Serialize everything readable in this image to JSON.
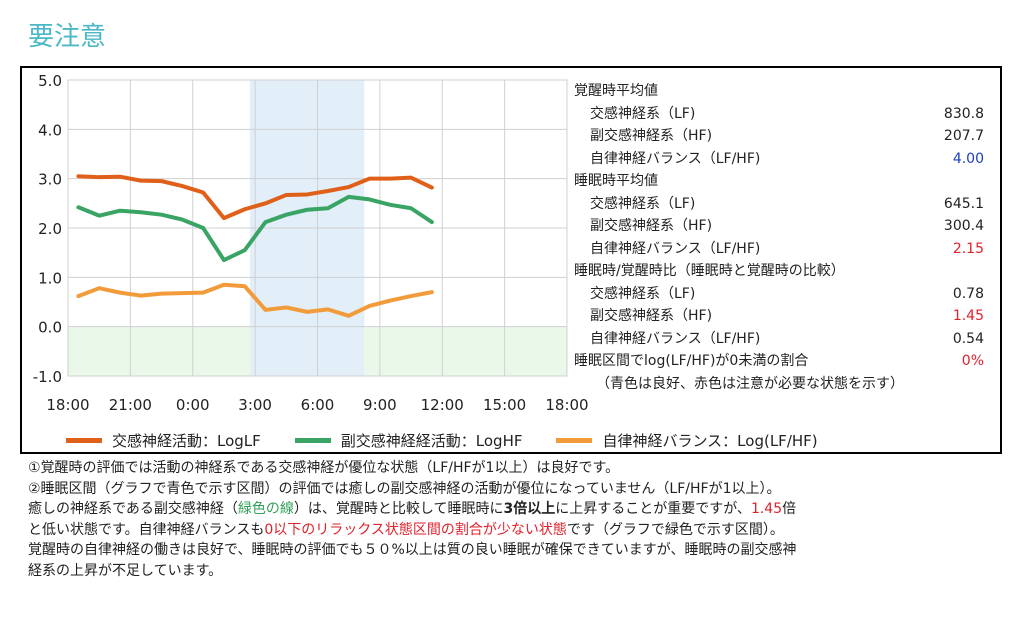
{
  "heading": "要注意",
  "colors": {
    "lf": "#e0601a",
    "hf": "#3aa464",
    "balance": "#f29b3a",
    "sleep_band": "#e2eef8",
    "low_band": "#eaf8ea",
    "good": "#1d3fbf",
    "caution": "#e0212b"
  },
  "chart_data": {
    "type": "line",
    "x": [
      "18:00",
      "19:00",
      "20:00",
      "21:00",
      "22:00",
      "23:00",
      "0:00",
      "1:00",
      "2:00",
      "3:00",
      "4:00",
      "5:00",
      "6:00",
      "7:00",
      "8:00",
      "9:00",
      "10:00",
      "11:00"
    ],
    "x_ticks": [
      "18:00",
      "21:00",
      "0:00",
      "3:00",
      "6:00",
      "9:00",
      "12:00",
      "15:00",
      "18:00"
    ],
    "y_ticks": [
      "5.0",
      "4.0",
      "3.0",
      "2.0",
      "1.0",
      "0.0",
      "-1.0"
    ],
    "ylim": [
      -1.0,
      5.0
    ],
    "sleep_interval": [
      "2:45",
      "8:15"
    ],
    "low_region": [
      -1.0,
      0.0
    ],
    "series": [
      {
        "name": "交感神経活動：LogLF",
        "color": "#e0601a",
        "values": [
          3.05,
          3.03,
          3.04,
          2.96,
          2.95,
          2.85,
          2.72,
          2.2,
          2.38,
          2.5,
          2.67,
          2.68,
          2.75,
          2.83,
          3.0,
          3.0,
          3.02,
          2.82
        ]
      },
      {
        "name": "副交感神経経活動：LogHF",
        "color": "#3aa464",
        "values": [
          2.42,
          2.25,
          2.35,
          2.32,
          2.27,
          2.17,
          2.0,
          1.35,
          1.55,
          2.12,
          2.27,
          2.37,
          2.4,
          2.63,
          2.58,
          2.47,
          2.4,
          2.12
        ]
      },
      {
        "name": "自律神経バランス：Log(LF/HF)",
        "color": "#f29b3a",
        "values": [
          0.62,
          0.78,
          0.69,
          0.63,
          0.67,
          0.68,
          0.69,
          0.85,
          0.82,
          0.34,
          0.39,
          0.3,
          0.35,
          0.22,
          0.42,
          0.53,
          0.62,
          0.7
        ]
      }
    ]
  },
  "stats": {
    "wake_title": "覚醒時平均値",
    "wake_lf_label": "交感神経系（LF)",
    "wake_lf": "830.8",
    "wake_hf_label": "副交感神経系（HF)",
    "wake_hf": "207.7",
    "wake_bal_label": "自律神経バランス（LF/HF)",
    "wake_bal": "4.00",
    "sleep_title": "睡眠時平均値",
    "sleep_lf_label": "交感神経系（LF)",
    "sleep_lf": "645.1",
    "sleep_hf_label": "副交感神経系（HF)",
    "sleep_hf": "300.4",
    "sleep_bal_label": "自律神経バランス（LF/HF)",
    "sleep_bal": "2.15",
    "ratio_title": "睡眠時/覚醒時比（睡眠時と覚醒時の比較）",
    "ratio_lf_label": "交感神経系（LF)",
    "ratio_lf": "0.78",
    "ratio_hf_label": "副交感神経系（HF)",
    "ratio_hf": "1.45",
    "ratio_bal_label": "自律神経バランス（LF/HF)",
    "ratio_bal": "0.54",
    "below_zero_label": "睡眠区間でlog(LF/HF)が0未満の割合",
    "below_zero": "0%",
    "note": "（青色は良好、赤色は注意が必要な状態を示す）"
  },
  "comments": {
    "line1": "①覚醒時の評価では活動の神経系である交感神経が優位な状態（LF/HFが1以上）は良好です。",
    "line2": "②睡眠区間（グラフで青色で示す区間）の評価では癒しの副交感神経の活動が優位になっていません（LF/HFが1以上）。",
    "line3_a": "癒しの神経系である副交感神経（",
    "line3_green": "緑色の線",
    "line3_b": "）は、覚醒時と比較して睡眠時に",
    "line3_bold": "3倍以上",
    "line3_c": "に上昇することが重要ですが、",
    "line3_red": "1.45",
    "line3_d": "倍",
    "line4_a": "と低い状態です。自律神経バランスも",
    "line4_red": "0以下のリラックス状態区間の割合が少ない状態",
    "line4_b": "です（グラフで緑色で示す区間）。",
    "line5": "覚醒時の自律神経の働きは良好で、睡眠時の評価でも５０%以上は質の良い睡眠が確保できていますが、睡眠時の副交感神",
    "line6": "経系の上昇が不足しています。"
  }
}
